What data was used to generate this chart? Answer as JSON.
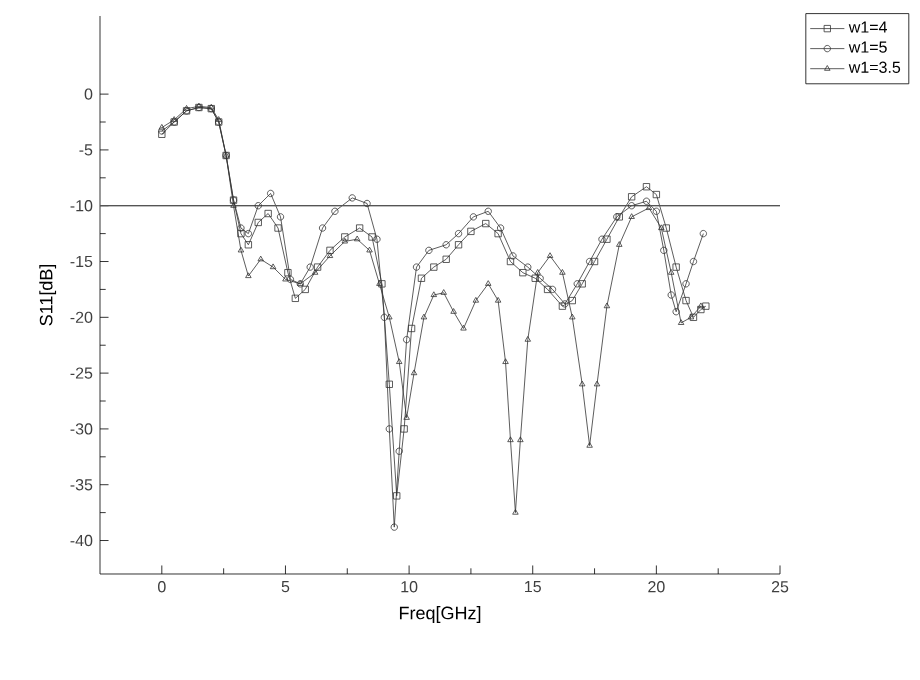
{
  "chart_data": {
    "type": "line",
    "xlabel": "Freq[GHz]",
    "ylabel": "S11[dB]",
    "xlim": [
      -2.5,
      25
    ],
    "ylim": [
      -43,
      7
    ],
    "xticks": [
      0,
      5,
      10,
      15,
      20,
      25
    ],
    "yticks": [
      0,
      -5,
      -10,
      -15,
      -20,
      -25,
      -30,
      -35,
      -40
    ],
    "grid": false,
    "legend": "top right",
    "line_style": "solid",
    "ref_lines": [
      {
        "axis": "y",
        "value": -10,
        "color": "#555555"
      }
    ],
    "series": [
      {
        "name": "w1=4",
        "color": "#333333",
        "marker": "square",
        "x": [
          0,
          0.5,
          1,
          1.5,
          2,
          2.3,
          2.6,
          2.9,
          3.2,
          3.5,
          3.9,
          4.3,
          4.7,
          5.1,
          5.4,
          5.8,
          6.3,
          6.8,
          7.4,
          8,
          8.5,
          8.9,
          9.2,
          9.5,
          9.8,
          10.1,
          10.5,
          11,
          11.5,
          12,
          12.5,
          13.1,
          13.6,
          14.1,
          14.6,
          15.1,
          15.6,
          16.2,
          16.6,
          17,
          17.5,
          18,
          18.5,
          19,
          19.6,
          20,
          20.4,
          20.8,
          21.2,
          21.5,
          21.8,
          22
        ],
        "values": [
          -3.6,
          -2.5,
          -1.5,
          -1.2,
          -1.3,
          -2.5,
          -5.5,
          -9.5,
          -12.5,
          -13.5,
          -11.5,
          -10.7,
          -12,
          -16,
          -18.3,
          -17.5,
          -15.5,
          -14,
          -12.8,
          -12,
          -12.8,
          -17,
          -26,
          -36,
          -30,
          -21,
          -16.5,
          -15.5,
          -14.8,
          -13.5,
          -12.3,
          -11.6,
          -12.5,
          -15,
          -16,
          -16.5,
          -17.5,
          -19,
          -18.5,
          -17,
          -15,
          -13,
          -11,
          -9.2,
          -8.3,
          -9,
          -12,
          -15.5,
          -18.5,
          -20,
          -19.3,
          -19
        ]
      },
      {
        "name": "w1=5",
        "color": "#333333",
        "marker": "circle",
        "x": [
          0,
          0.5,
          1,
          1.5,
          2,
          2.3,
          2.6,
          2.9,
          3.2,
          3.5,
          3.9,
          4.4,
          4.8,
          5.2,
          5.6,
          6,
          6.5,
          7,
          7.7,
          8.3,
          8.7,
          9,
          9.2,
          9.4,
          9.6,
          9.9,
          10.3,
          10.8,
          11.5,
          12,
          12.6,
          13.2,
          13.7,
          14.2,
          14.8,
          15.3,
          15.8,
          16.3,
          16.8,
          17.3,
          17.8,
          18.4,
          19,
          19.6,
          20,
          20.3,
          20.6,
          20.8,
          21.2,
          21.5,
          21.9
        ],
        "values": [
          -3.3,
          -2.5,
          -1.5,
          -1.2,
          -1.3,
          -2.5,
          -5.5,
          -9.5,
          -12,
          -12.5,
          -10,
          -8.9,
          -11,
          -16.6,
          -17,
          -15.5,
          -12,
          -10.5,
          -9.3,
          -9.8,
          -13,
          -20,
          -30,
          -38.8,
          -32,
          -22,
          -15.5,
          -14,
          -13.5,
          -12.5,
          -11,
          -10.5,
          -12,
          -14.5,
          -15.5,
          -16.5,
          -17.5,
          -18.8,
          -17,
          -15,
          -13,
          -11,
          -10,
          -9.6,
          -10.5,
          -14,
          -18,
          -19.5,
          -17,
          -15,
          -12.5
        ]
      },
      {
        "name": "w1=3.5",
        "color": "#333333",
        "marker": "triangle",
        "x": [
          0,
          0.5,
          1,
          1.5,
          2,
          2.3,
          2.6,
          2.9,
          3.2,
          3.5,
          4,
          4.5,
          5,
          5.6,
          6.2,
          6.8,
          7.4,
          7.9,
          8.4,
          8.8,
          9.2,
          9.6,
          9.9,
          10.2,
          10.6,
          11,
          11.4,
          11.8,
          12.2,
          12.7,
          13.2,
          13.6,
          13.9,
          14.1,
          14.3,
          14.5,
          14.8,
          15.2,
          15.7,
          16.2,
          16.6,
          17,
          17.3,
          17.6,
          18,
          18.5,
          19,
          19.7,
          20.2,
          20.6,
          21,
          21.4,
          21.8
        ],
        "values": [
          -3,
          -2.3,
          -1.3,
          -1.1,
          -1.2,
          -2.3,
          -5.5,
          -10,
          -14,
          -16.3,
          -14.8,
          -15.5,
          -16.6,
          -17,
          -16,
          -14.5,
          -13.2,
          -13,
          -14,
          -17,
          -20,
          -24,
          -29,
          -25,
          -20,
          -18,
          -17.8,
          -19.5,
          -21,
          -18.5,
          -17,
          -18.5,
          -24,
          -31,
          -37.5,
          -31,
          -22,
          -16,
          -14.5,
          -16,
          -20,
          -26,
          -31.5,
          -26,
          -19,
          -13.5,
          -11,
          -10.2,
          -12,
          -16,
          -20.5,
          -20,
          -19
        ]
      }
    ]
  }
}
